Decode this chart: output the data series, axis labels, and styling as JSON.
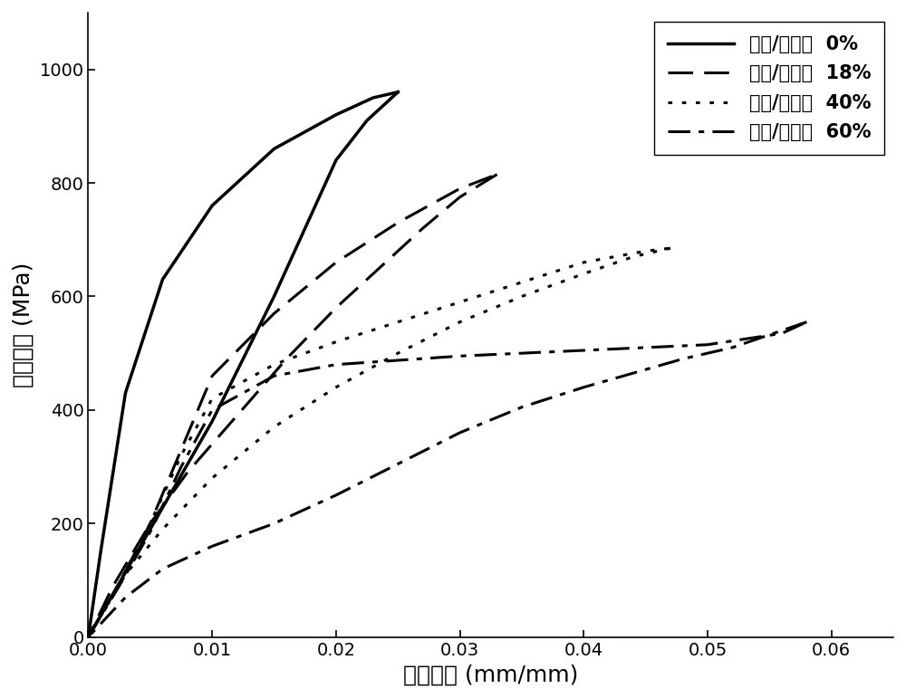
{
  "xlabel": "工程应变 (mm/mm)",
  "ylabel": "工程应力 (MPa)",
  "xlim": [
    0.0,
    0.065
  ],
  "ylim": [
    0,
    1100
  ],
  "xticks": [
    0.0,
    0.01,
    0.02,
    0.03,
    0.04,
    0.05,
    0.06
  ],
  "yticks": [
    0,
    200,
    400,
    600,
    800,
    1000
  ],
  "line_color": "#000000",
  "background_color": "#ffffff",
  "lw": 2.2,
  "pct0_load_x": [
    0.0,
    0.0025,
    0.005,
    0.0075,
    0.01,
    0.0125,
    0.015,
    0.0175,
    0.02,
    0.0225,
    0.025
  ],
  "pct0_load_y": [
    0,
    95,
    190,
    285,
    380,
    490,
    600,
    720,
    840,
    910,
    960
  ],
  "pct0_unload_x": [
    0.025,
    0.023,
    0.02,
    0.015,
    0.01,
    0.006,
    0.003,
    0.001,
    0.0
  ],
  "pct0_unload_y": [
    960,
    950,
    920,
    860,
    760,
    630,
    430,
    150,
    0
  ],
  "pct18_load_x": [
    0.0,
    0.0025,
    0.005,
    0.0075,
    0.01,
    0.015,
    0.02,
    0.025,
    0.03,
    0.033
  ],
  "pct18_load_y": [
    0,
    95,
    200,
    330,
    460,
    570,
    660,
    730,
    790,
    815
  ],
  "pct18_unload_x": [
    0.033,
    0.03,
    0.027,
    0.024,
    0.02,
    0.016,
    0.012,
    0.008,
    0.005,
    0.002,
    0.0
  ],
  "pct18_unload_y": [
    815,
    775,
    720,
    660,
    580,
    490,
    390,
    290,
    200,
    90,
    0
  ],
  "pct40_load_x": [
    0.0,
    0.0025,
    0.005,
    0.0075,
    0.01,
    0.015,
    0.02,
    0.025,
    0.03,
    0.035,
    0.04,
    0.045,
    0.047
  ],
  "pct40_load_y": [
    0,
    95,
    200,
    320,
    420,
    480,
    520,
    555,
    590,
    625,
    660,
    680,
    685
  ],
  "pct40_unload_x": [
    0.047,
    0.044,
    0.04,
    0.035,
    0.03,
    0.025,
    0.02,
    0.015,
    0.01,
    0.006,
    0.003,
    0.0
  ],
  "pct40_unload_y": [
    685,
    670,
    640,
    600,
    555,
    500,
    440,
    370,
    280,
    190,
    110,
    0
  ],
  "pct60_load_x": [
    0.0,
    0.0025,
    0.005,
    0.0075,
    0.01,
    0.015,
    0.02,
    0.03,
    0.04,
    0.05,
    0.056,
    0.058
  ],
  "pct60_load_y": [
    0,
    90,
    185,
    300,
    400,
    460,
    480,
    495,
    505,
    515,
    535,
    555
  ],
  "pct60_unload_x": [
    0.058,
    0.056,
    0.052,
    0.048,
    0.044,
    0.04,
    0.035,
    0.03,
    0.025,
    0.02,
    0.015,
    0.01,
    0.006,
    0.003,
    0.0
  ],
  "pct60_unload_y": [
    555,
    540,
    510,
    490,
    465,
    440,
    405,
    360,
    305,
    250,
    200,
    160,
    120,
    70,
    0
  ]
}
